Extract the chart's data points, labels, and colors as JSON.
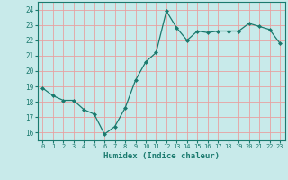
{
  "x": [
    0,
    1,
    2,
    3,
    4,
    5,
    6,
    7,
    8,
    9,
    10,
    11,
    12,
    13,
    14,
    15,
    16,
    17,
    18,
    19,
    20,
    21,
    22,
    23
  ],
  "y": [
    18.9,
    18.4,
    18.1,
    18.1,
    17.5,
    17.2,
    15.9,
    16.4,
    17.6,
    19.4,
    20.6,
    21.2,
    23.9,
    22.8,
    22.0,
    22.6,
    22.5,
    22.6,
    22.6,
    22.6,
    23.1,
    22.9,
    22.7,
    21.8
  ],
  "line_color": "#1a7a6e",
  "marker": "D",
  "marker_size": 2,
  "bg_color": "#c8eaea",
  "grid_color": "#e8a0a0",
  "xlabel": "Humidex (Indice chaleur)",
  "ylim": [
    15.5,
    24.5
  ],
  "xlim": [
    -0.5,
    23.5
  ],
  "yticks": [
    16,
    17,
    18,
    19,
    20,
    21,
    22,
    23,
    24
  ],
  "xticks": [
    0,
    1,
    2,
    3,
    4,
    5,
    6,
    7,
    8,
    9,
    10,
    11,
    12,
    13,
    14,
    15,
    16,
    17,
    18,
    19,
    20,
    21,
    22,
    23
  ],
  "font_color": "#1a7a6e"
}
